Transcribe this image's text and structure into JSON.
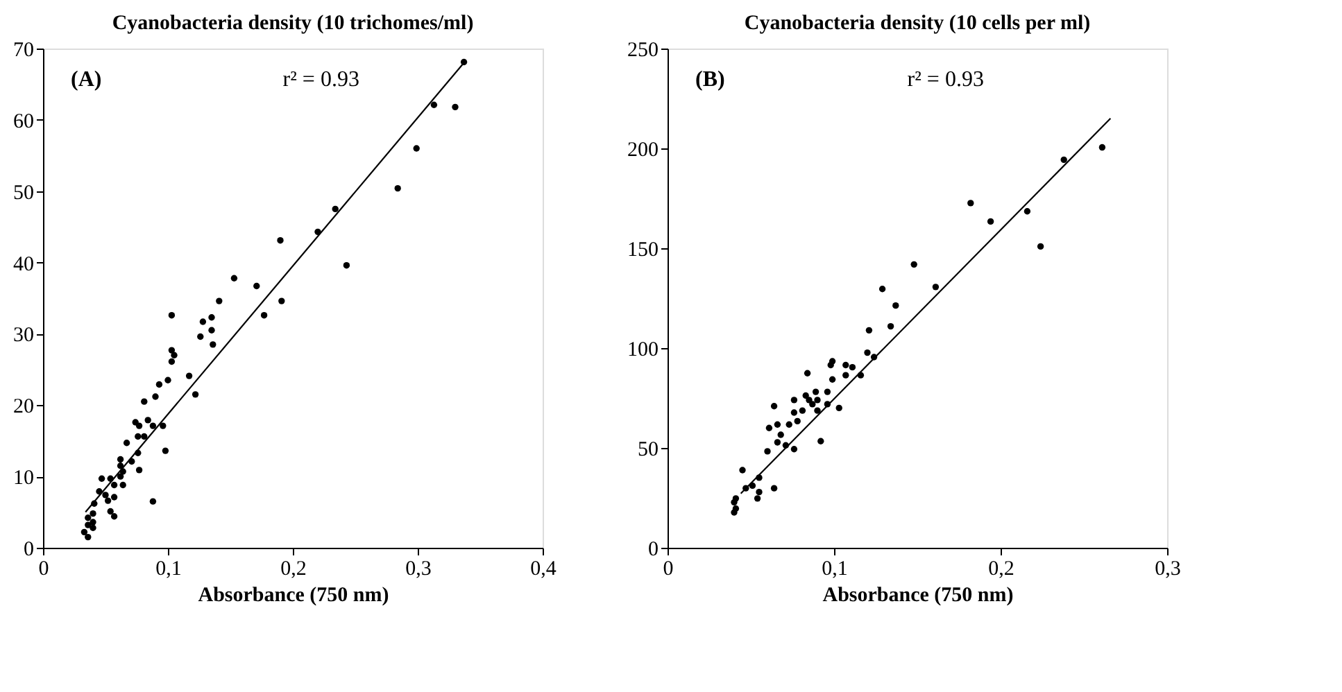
{
  "chart_data": [
    {
      "type": "scatter",
      "title": "Cyanobacteria density (10 trichomes/ml)",
      "xlabel": "Absorbance (750 nm)",
      "xlim": [
        0,
        0.4
      ],
      "xticks": [
        0,
        {
          "value": 0.1,
          "label": "0,1"
        },
        {
          "value": 0.2,
          "label": "0,2"
        },
        {
          "value": 0.3,
          "label": "0,3"
        },
        {
          "value": 0.4,
          "label": "0,4"
        }
      ],
      "ylim": [
        0,
        70
      ],
      "yticks": [
        0,
        10,
        20,
        30,
        40,
        50,
        60,
        70
      ],
      "grid": false,
      "annotations": [
        "(A)",
        "r² = 0.93"
      ],
      "series": [
        {
          "type": "scatter",
          "marker": "circle",
          "color": "#000000",
          "x": [
            0.337,
            0.313,
            0.33,
            0.299,
            0.284,
            0.234,
            0.22,
            0.19,
            0.243,
            0.153,
            0.171,
            0.141,
            0.191,
            0.103,
            0.177,
            0.128,
            0.135,
            0.126,
            0.135,
            0.136,
            0.103,
            0.105,
            0.103,
            0.117,
            0.1,
            0.093,
            0.122,
            0.081,
            0.09,
            0.074,
            0.084,
            0.077,
            0.088,
            0.096,
            0.076,
            0.081,
            0.067,
            0.098,
            0.076,
            0.062,
            0.071,
            0.062,
            0.064,
            0.062,
            0.077,
            0.047,
            0.054,
            0.057,
            0.064,
            0.045,
            0.05,
            0.052,
            0.057,
            0.088,
            0.041,
            0.054,
            0.057,
            0.04,
            0.036,
            0.04,
            0.036,
            0.04,
            0.033,
            0.036
          ],
          "values": [
            68.1,
            62.1,
            61.8,
            56.0,
            50.4,
            47.5,
            44.3,
            43.1,
            39.6,
            37.8,
            36.7,
            34.6,
            34.6,
            32.6,
            32.6,
            31.7,
            32.3,
            29.6,
            30.5,
            28.5,
            27.7,
            27.0,
            26.1,
            24.1,
            23.5,
            22.9,
            21.5,
            20.5,
            21.2,
            17.6,
            17.9,
            17.1,
            17.1,
            17.1,
            15.6,
            15.6,
            14.7,
            13.6,
            13.3,
            12.4,
            12.1,
            11.5,
            10.7,
            10.0,
            10.9,
            9.7,
            9.7,
            8.8,
            8.8,
            7.9,
            7.4,
            6.6,
            7.1,
            6.5,
            6.2,
            5.1,
            4.4,
            4.8,
            4.2,
            3.6,
            3.2,
            2.8,
            2.2,
            1.5
          ]
        },
        {
          "type": "line",
          "color": "#000000",
          "x": [
            0.034,
            0.337
          ],
          "values": [
            5.0,
            68.0
          ]
        }
      ]
    },
    {
      "type": "scatter",
      "title": "Cyanobacteria density (10 cells per ml)",
      "xlabel": "Absorbance (750 nm)",
      "xlim": [
        0,
        0.3
      ],
      "xticks": [
        0,
        {
          "value": 0.1,
          "label": "0,1"
        },
        {
          "value": 0.2,
          "label": "0,2"
        },
        {
          "value": 0.3,
          "label": "0,3"
        }
      ],
      "ylim": [
        0,
        250
      ],
      "yticks": [
        0,
        50,
        100,
        150,
        200,
        250
      ],
      "grid": false,
      "annotations": [
        "(B)",
        "r² = 0.93"
      ],
      "series": [
        {
          "type": "scatter",
          "marker": "circle",
          "color": "#000000",
          "x": [
            0.261,
            0.238,
            0.182,
            0.194,
            0.216,
            0.224,
            0.148,
            0.161,
            0.129,
            0.137,
            0.121,
            0.134,
            0.12,
            0.124,
            0.099,
            0.098,
            0.107,
            0.111,
            0.107,
            0.116,
            0.084,
            0.099,
            0.096,
            0.089,
            0.083,
            0.085,
            0.09,
            0.076,
            0.096,
            0.064,
            0.087,
            0.103,
            0.081,
            0.076,
            0.09,
            0.078,
            0.073,
            0.066,
            0.061,
            0.068,
            0.066,
            0.071,
            0.076,
            0.06,
            0.092,
            0.045,
            0.055,
            0.051,
            0.047,
            0.064,
            0.055,
            0.054,
            0.041,
            0.04,
            0.041,
            0.04
          ],
          "values": [
            200.5,
            194.3,
            172.6,
            163.4,
            168.5,
            150.9,
            141.9,
            130.6,
            129.6,
            121.3,
            108.9,
            110.9,
            97.7,
            95.5,
            93.4,
            91.5,
            91.5,
            90.4,
            86.4,
            86.4,
            87.4,
            84.3,
            78.1,
            78.1,
            76.2,
            74.0,
            74.0,
            74.0,
            71.9,
            70.9,
            71.9,
            70.0,
            68.7,
            67.7,
            68.7,
            63.4,
            61.7,
            61.7,
            60.0,
            56.6,
            52.8,
            51.3,
            49.4,
            48.3,
            53.4,
            38.9,
            35.1,
            31.1,
            29.8,
            29.8,
            27.9,
            24.7,
            24.7,
            22.8,
            19.6,
            17.7
          ]
        },
        {
          "type": "line",
          "color": "#000000",
          "x": [
            0.044,
            0.266
          ],
          "values": [
            27.2,
            215.0
          ]
        }
      ]
    }
  ]
}
